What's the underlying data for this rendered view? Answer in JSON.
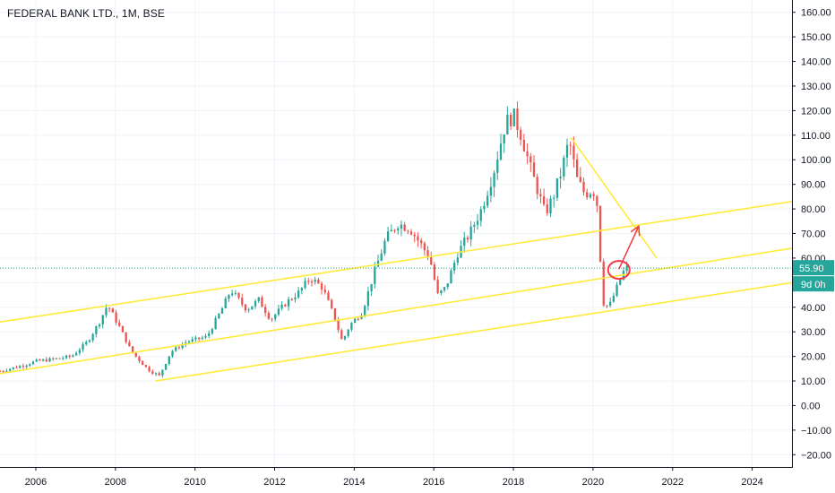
{
  "title": "FEDERAL BANK LTD., 1M, BSE",
  "colors": {
    "up": "#26a69a",
    "down": "#ef5350",
    "channel": "#ffeb3b",
    "annotation": "#f23645",
    "price_line": "#26a69a",
    "grid": "#f0f3fa",
    "axis_text": "#131722"
  },
  "chart_data": {
    "type": "candlestick",
    "timeframe": "1M",
    "x_axis": {
      "ticks": [
        "2006",
        "2008",
        "2010",
        "2012",
        "2014",
        "2016",
        "2018",
        "2020",
        "2022",
        "2024"
      ],
      "range": [
        2005.1,
        2025.0
      ]
    },
    "y_axis": {
      "ticks": [
        "160.00",
        "150.00",
        "140.00",
        "130.00",
        "120.00",
        "110.00",
        "100.00",
        "90.00",
        "80.00",
        "70.00",
        "60.00",
        "50.00",
        "40.00",
        "30.00",
        "20.00",
        "10.00",
        "0.00",
        "−10.00",
        "−20.00"
      ],
      "range": [
        -25,
        165
      ]
    },
    "last_price": {
      "value": 55.9,
      "label": "55.90"
    },
    "countdown_label": "9d 0h",
    "grid": true,
    "series": [
      {
        "name": "ohlc_anchors",
        "values": [
          [
            2005.1,
            14
          ],
          [
            2005.6,
            16
          ],
          [
            2006.0,
            18
          ],
          [
            2006.5,
            19
          ],
          [
            2006.9,
            20
          ],
          [
            2007.3,
            26
          ],
          [
            2007.6,
            34
          ],
          [
            2007.8,
            41
          ],
          [
            2008.1,
            32
          ],
          [
            2008.4,
            22
          ],
          [
            2008.8,
            15
          ],
          [
            2009.1,
            12
          ],
          [
            2009.4,
            22
          ],
          [
            2009.8,
            26
          ],
          [
            2010.3,
            28
          ],
          [
            2010.7,
            40
          ],
          [
            2010.9,
            47
          ],
          [
            2011.3,
            39
          ],
          [
            2011.6,
            43
          ],
          [
            2011.9,
            35
          ],
          [
            2012.3,
            42
          ],
          [
            2012.6,
            46
          ],
          [
            2012.9,
            52
          ],
          [
            2013.2,
            48
          ],
          [
            2013.5,
            36
          ],
          [
            2013.7,
            26
          ],
          [
            2013.9,
            33
          ],
          [
            2014.2,
            38
          ],
          [
            2014.5,
            54
          ],
          [
            2014.8,
            68
          ],
          [
            2015.1,
            74
          ],
          [
            2015.4,
            72
          ],
          [
            2015.7,
            65
          ],
          [
            2015.9,
            60
          ],
          [
            2016.1,
            45
          ],
          [
            2016.3,
            48
          ],
          [
            2016.6,
            62
          ],
          [
            2016.9,
            70
          ],
          [
            2017.2,
            80
          ],
          [
            2017.5,
            95
          ],
          [
            2017.8,
            115
          ],
          [
            2018.0,
            118
          ],
          [
            2018.2,
            110
          ],
          [
            2018.4,
            98
          ],
          [
            2018.6,
            88
          ],
          [
            2018.8,
            78
          ],
          [
            2019.0,
            85
          ],
          [
            2019.2,
            95
          ],
          [
            2019.4,
            108
          ],
          [
            2019.6,
            92
          ],
          [
            2019.8,
            86
          ],
          [
            2020.0,
            88
          ],
          [
            2020.1,
            82
          ],
          [
            2020.25,
            42
          ],
          [
            2020.4,
            40
          ],
          [
            2020.6,
            48
          ],
          [
            2020.75,
            54
          ],
          [
            2020.85,
            55.9
          ]
        ]
      }
    ],
    "annotations": {
      "channel_upper": [
        [
          2005.1,
          34
        ],
        [
          2025.0,
          83
        ]
      ],
      "channel_middle": [
        [
          2005.1,
          13
        ],
        [
          2025.0,
          64
        ]
      ],
      "channel_lower": [
        [
          2009.0,
          10
        ],
        [
          2025.0,
          50
        ]
      ],
      "downtrend_line": [
        [
          2019.45,
          109
        ],
        [
          2021.6,
          60
        ]
      ],
      "arrow": [
        [
          2020.65,
          55.5
        ],
        [
          2021.15,
          73
        ]
      ],
      "circle_center": [
        2020.65,
        55.2
      ]
    }
  }
}
